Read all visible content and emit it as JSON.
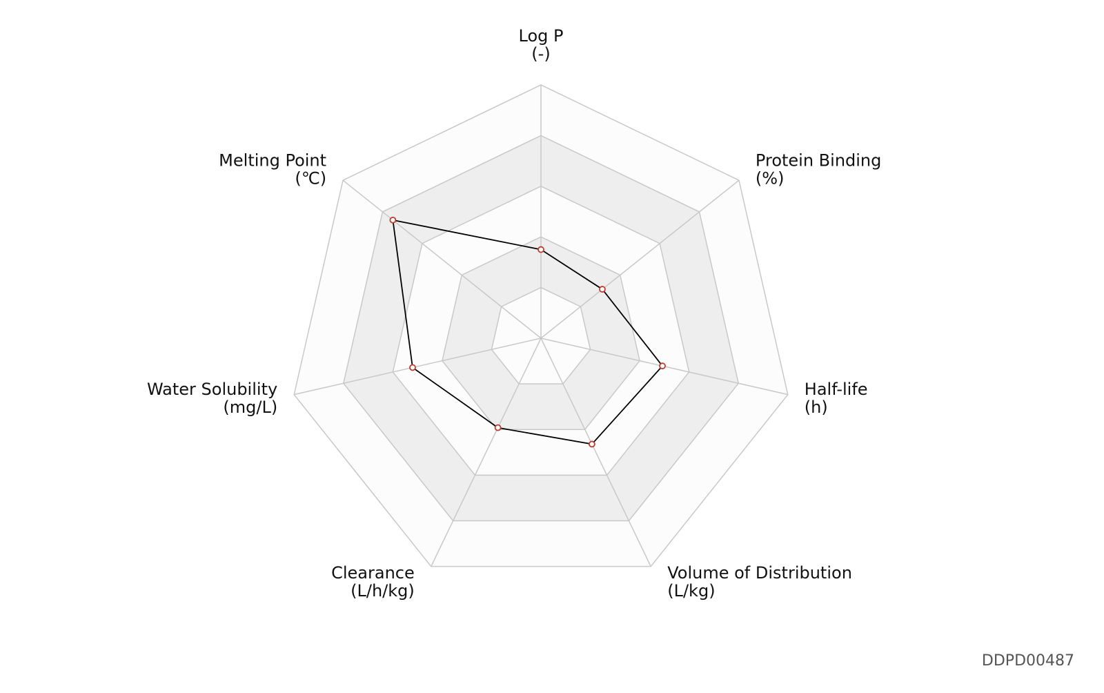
{
  "chart_data": {
    "type": "radar",
    "categories": [
      "Log P",
      "Protein Binding",
      "Half-life",
      "Volume of Distribution",
      "Clearance",
      "Water Solubility",
      "Melting Point"
    ],
    "units": [
      "(-)",
      "(%)",
      "(h)",
      "(L/kg)",
      "(L/h/kg)",
      "(mg/L)",
      "(℃)"
    ],
    "values": [
      1.75,
      1.55,
      2.46,
      2.32,
      1.96,
      2.6,
      3.74
    ],
    "color": "#000000",
    "marker_color": "#c0392b",
    "rlim": [
      0,
      5
    ],
    "rticks": [
      1,
      2,
      3,
      4,
      5
    ],
    "grid": true,
    "watermark": "DDPD00487"
  }
}
